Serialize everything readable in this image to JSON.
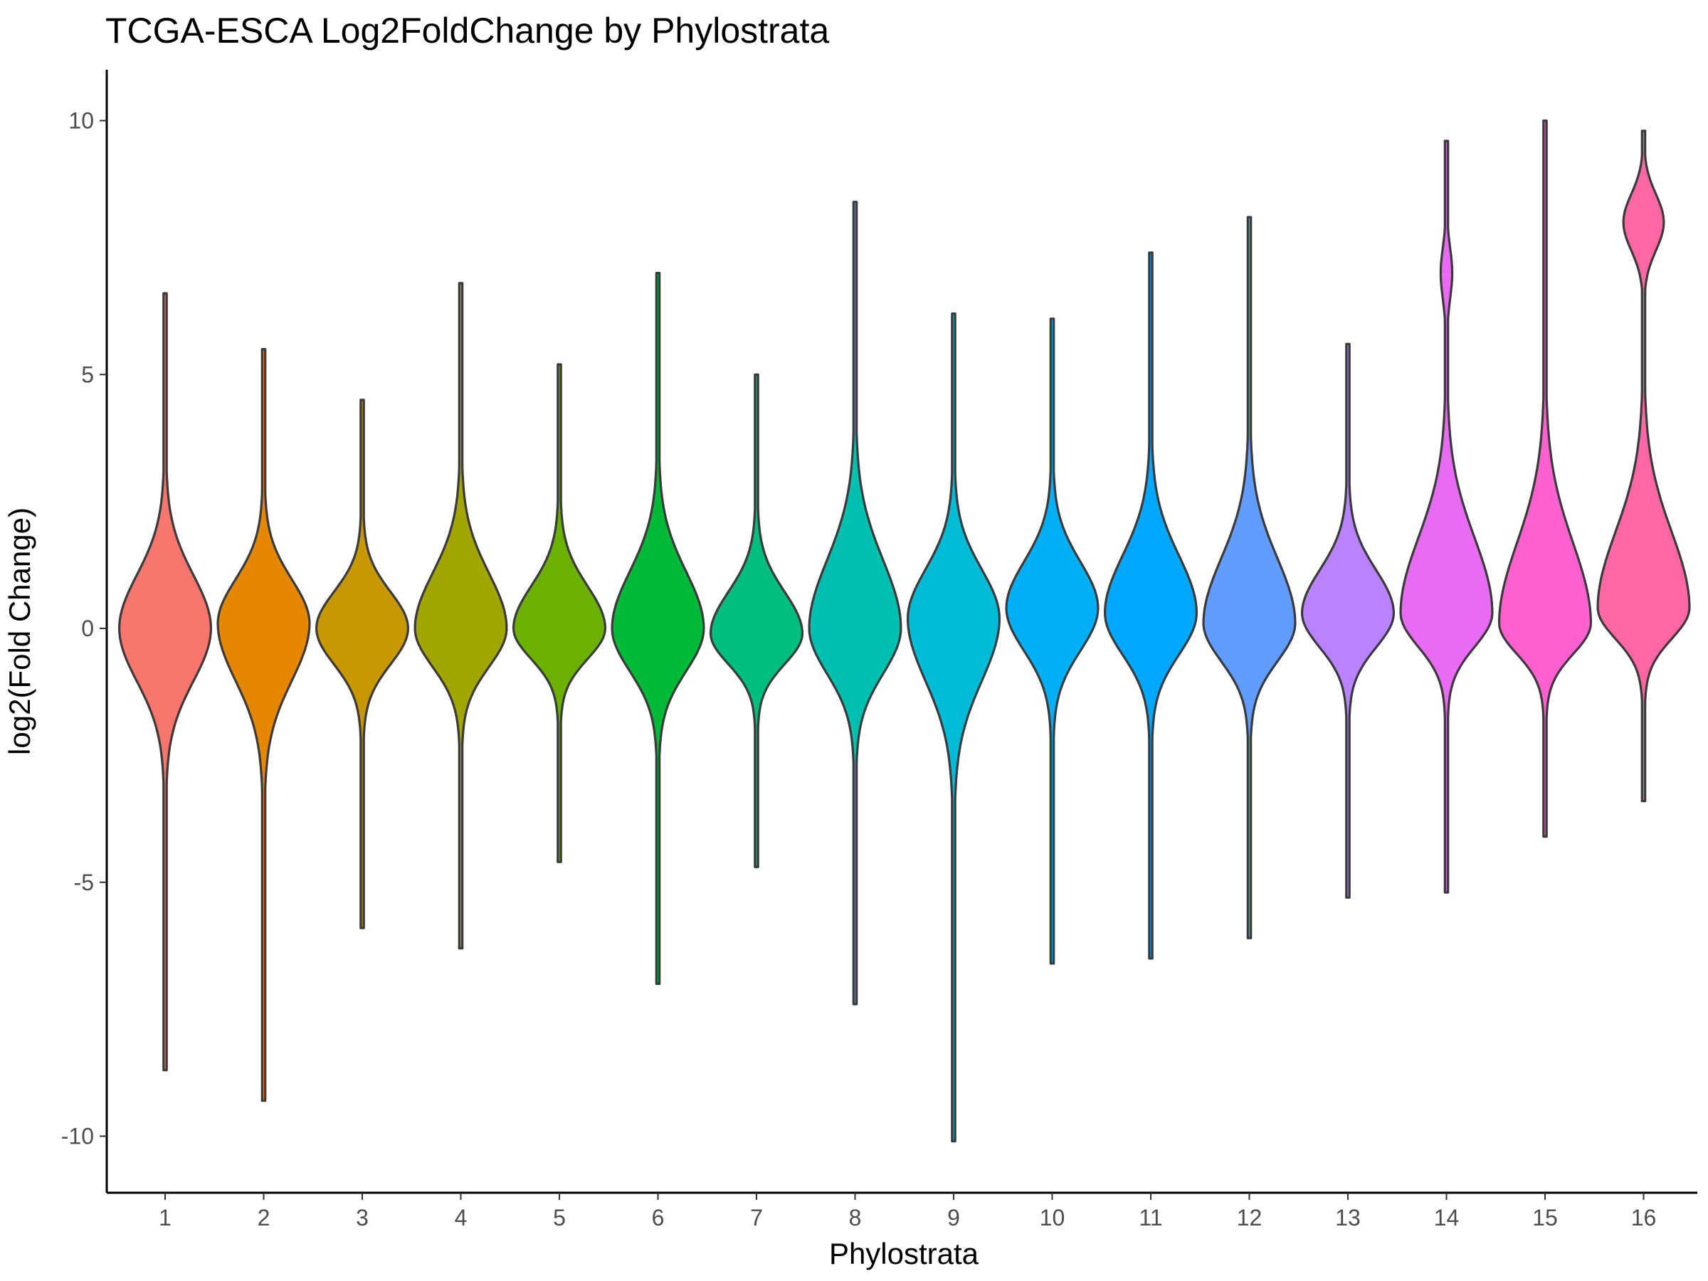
{
  "chart_data": {
    "type": "violin",
    "title": "TCGA-ESCA Log2FoldChange by Phylostrata",
    "xlabel": "Phylostrata",
    "ylabel": "log2(Fold Change)",
    "ylim": [
      -11,
      11
    ],
    "y_ticks": [
      10,
      5,
      0,
      -5,
      -10
    ],
    "y_tick_labels": [
      "10",
      "5",
      "0",
      "-5",
      "-10"
    ],
    "categories": [
      "1",
      "2",
      "3",
      "4",
      "5",
      "6",
      "7",
      "8",
      "9",
      "10",
      "11",
      "12",
      "13",
      "14",
      "15",
      "16"
    ],
    "grid": false,
    "legend": "none",
    "series": [
      {
        "category": "1",
        "color": "#F8766D",
        "max": 6.6,
        "min": -8.7,
        "median": 0.0
      },
      {
        "category": "2",
        "color": "#E58700",
        "max": 5.5,
        "min": -9.3,
        "median": 0.1
      },
      {
        "category": "3",
        "color": "#C99800",
        "max": 4.5,
        "min": -5.9,
        "median": 0.0
      },
      {
        "category": "4",
        "color": "#A3A500",
        "max": 6.8,
        "min": -6.3,
        "median": 0.0
      },
      {
        "category": "5",
        "color": "#6BB100",
        "max": 5.2,
        "min": -4.6,
        "median": 0.0
      },
      {
        "category": "6",
        "color": "#00BA38",
        "max": 7.0,
        "min": -7.0,
        "median": 0.0
      },
      {
        "category": "7",
        "color": "#00BF7D",
        "max": 5.0,
        "min": -4.7,
        "median": -0.1
      },
      {
        "category": "8",
        "color": "#00C0AF",
        "max": 8.4,
        "min": -7.4,
        "median": 0.0
      },
      {
        "category": "9",
        "color": "#00BCD8",
        "max": 6.2,
        "min": -10.1,
        "median": 0.2
      },
      {
        "category": "10",
        "color": "#00B0F6",
        "max": 6.1,
        "min": -6.6,
        "median": 0.4
      },
      {
        "category": "11",
        "color": "#00A9FF",
        "max": 7.4,
        "min": -6.5,
        "median": 0.3
      },
      {
        "category": "12",
        "color": "#619CFF",
        "max": 8.1,
        "min": -6.1,
        "median": 0.1
      },
      {
        "category": "13",
        "color": "#B983FF",
        "max": 5.6,
        "min": -5.3,
        "median": 0.3
      },
      {
        "category": "14",
        "color": "#E76BF3",
        "max": 9.6,
        "min": -5.2,
        "median": 0.3
      },
      {
        "category": "15",
        "color": "#FD61D1",
        "max": 10.0,
        "min": -4.1,
        "median": 0.1
      },
      {
        "category": "16",
        "color": "#FF67A4",
        "max": 9.8,
        "min": -3.4,
        "median": 0.4
      }
    ]
  }
}
